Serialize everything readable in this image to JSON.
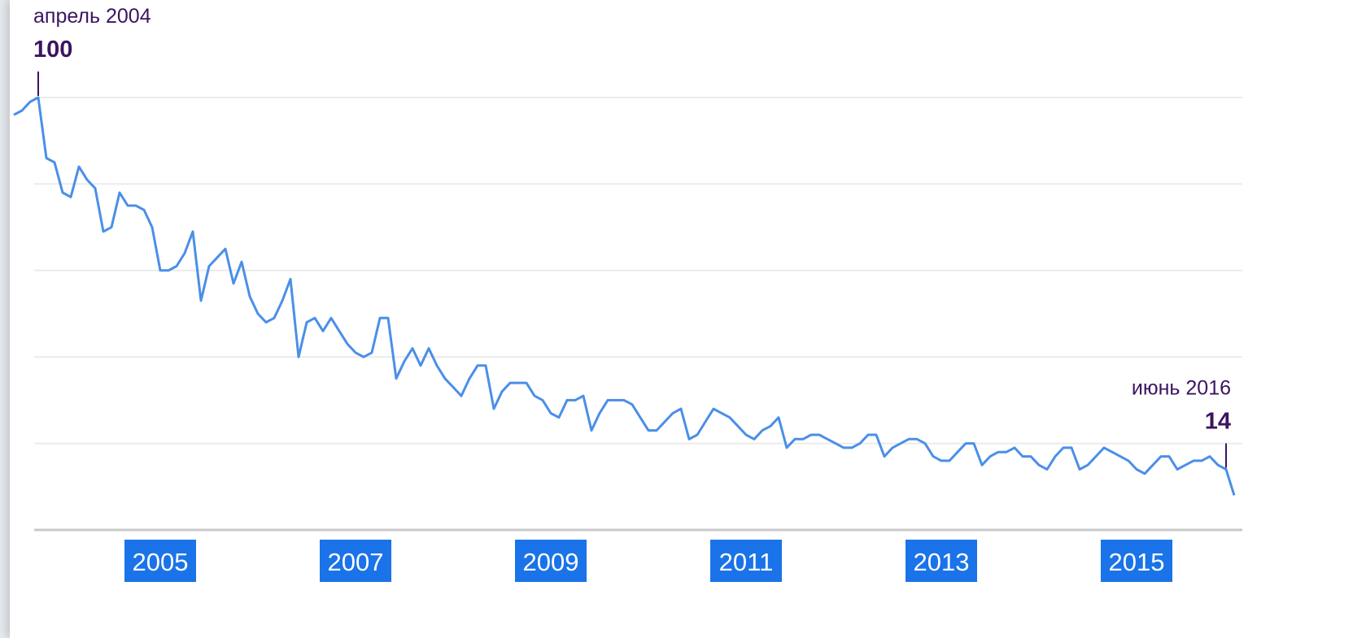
{
  "chart_data": {
    "type": "line",
    "title": "",
    "xlabel": "",
    "ylabel": "",
    "ylim": [
      0,
      100
    ],
    "grid": true,
    "x_ticks": [
      "2005",
      "2007",
      "2009",
      "2011",
      "2013",
      "2015"
    ],
    "x_range": [
      "2004-01",
      "2016-07"
    ],
    "series": [
      {
        "name": "",
        "color": "#4a8fe8",
        "x": [
          "2004-01",
          "2004-02",
          "2004-03",
          "2004-04",
          "2004-05",
          "2004-06",
          "2004-07",
          "2004-08",
          "2004-09",
          "2004-10",
          "2004-11",
          "2004-12",
          "2005-01",
          "2005-02",
          "2005-03",
          "2005-04",
          "2005-05",
          "2005-06",
          "2005-07",
          "2005-08",
          "2005-09",
          "2005-10",
          "2005-11",
          "2005-12",
          "2006-01",
          "2006-02",
          "2006-03",
          "2006-04",
          "2006-05",
          "2006-06",
          "2006-07",
          "2006-08",
          "2006-09",
          "2006-10",
          "2006-11",
          "2006-12",
          "2007-01",
          "2007-02",
          "2007-03",
          "2007-04",
          "2007-05",
          "2007-06",
          "2007-07",
          "2007-08",
          "2007-09",
          "2007-10",
          "2007-11",
          "2007-12",
          "2008-01",
          "2008-02",
          "2008-03",
          "2008-04",
          "2008-05",
          "2008-06",
          "2008-07",
          "2008-08",
          "2008-09",
          "2008-10",
          "2008-11",
          "2008-12",
          "2009-01",
          "2009-02",
          "2009-03",
          "2009-04",
          "2009-05",
          "2009-06",
          "2009-07",
          "2009-08",
          "2009-09",
          "2009-10",
          "2009-11",
          "2009-12",
          "2010-01",
          "2010-02",
          "2010-03",
          "2010-04",
          "2010-05",
          "2010-06",
          "2010-07",
          "2010-08",
          "2010-09",
          "2010-10",
          "2010-11",
          "2010-12",
          "2011-01",
          "2011-02",
          "2011-03",
          "2011-04",
          "2011-05",
          "2011-06",
          "2011-07",
          "2011-08",
          "2011-09",
          "2011-10",
          "2011-11",
          "2011-12",
          "2012-01",
          "2012-02",
          "2012-03",
          "2012-04",
          "2012-05",
          "2012-06",
          "2012-07",
          "2012-08",
          "2012-09",
          "2012-10",
          "2012-11",
          "2012-12",
          "2013-01",
          "2013-02",
          "2013-03",
          "2013-04",
          "2013-05",
          "2013-06",
          "2013-07",
          "2013-08",
          "2013-09",
          "2013-10",
          "2013-11",
          "2013-12",
          "2014-01",
          "2014-02",
          "2014-03",
          "2014-04",
          "2014-05",
          "2014-06",
          "2014-07",
          "2014-08",
          "2014-09",
          "2014-10",
          "2014-11",
          "2014-12",
          "2015-01",
          "2015-02",
          "2015-03",
          "2015-04",
          "2015-05",
          "2015-06",
          "2015-07",
          "2015-08",
          "2015-09",
          "2015-10",
          "2015-11",
          "2015-12",
          "2016-01",
          "2016-02",
          "2016-03",
          "2016-04",
          "2016-05",
          "2016-06",
          "2016-07"
        ],
        "values": [
          96,
          97,
          99,
          100,
          86,
          85,
          78,
          77,
          84,
          81,
          79,
          69,
          70,
          78,
          75,
          75,
          74,
          70,
          60,
          60,
          61,
          64,
          69,
          53,
          61,
          63,
          65,
          57,
          62,
          54,
          50,
          48,
          49,
          53,
          58,
          40,
          48,
          49,
          46,
          49,
          46,
          43,
          41,
          40,
          41,
          49,
          49,
          35,
          39,
          42,
          38,
          42,
          38,
          35,
          33,
          31,
          35,
          38,
          38,
          28,
          32,
          34,
          34,
          34,
          31,
          30,
          27,
          26,
          30,
          30,
          31,
          23,
          27,
          30,
          30,
          30,
          29,
          26,
          23,
          23,
          25,
          27,
          28,
          21,
          22,
          25,
          28,
          27,
          26,
          24,
          22,
          21,
          23,
          24,
          26,
          19,
          21,
          21,
          22,
          22,
          21,
          20,
          19,
          19,
          20,
          22,
          22,
          17,
          19,
          20,
          21,
          21,
          20,
          17,
          16,
          16,
          18,
          20,
          20,
          15,
          17,
          18,
          18,
          19,
          17,
          17,
          15,
          14,
          17,
          19,
          19,
          14,
          15,
          17,
          19,
          18,
          17,
          16,
          14,
          13,
          15,
          17,
          17,
          14,
          15,
          16,
          16,
          17,
          15,
          14,
          8
        ]
      }
    ],
    "annotations": [
      {
        "label": "апрель 2004",
        "value": "100",
        "x": "2004-04",
        "y": 100
      },
      {
        "label": "июнь 2016",
        "value": "14",
        "x": "2016-06",
        "y": 14
      }
    ]
  },
  "style": {
    "line_color": "#4a8fe8",
    "grid_color": "#ebebeb",
    "axis_color": "#c8c8c8",
    "tick_bg": "#1a73e8",
    "tick_text": "#ffffff",
    "annotation_color": "#3c1461"
  }
}
